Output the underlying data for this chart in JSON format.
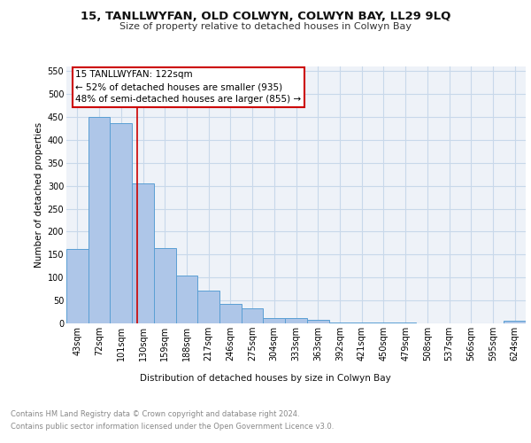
{
  "title": "15, TANLLWYFAN, OLD COLWYN, COLWYN BAY, LL29 9LQ",
  "subtitle": "Size of property relative to detached houses in Colwyn Bay",
  "xlabel": "Distribution of detached houses by size in Colwyn Bay",
  "ylabel": "Number of detached properties",
  "categories": [
    "43sqm",
    "72sqm",
    "101sqm",
    "130sqm",
    "159sqm",
    "188sqm",
    "217sqm",
    "246sqm",
    "275sqm",
    "304sqm",
    "333sqm",
    "363sqm",
    "392sqm",
    "421sqm",
    "450sqm",
    "479sqm",
    "508sqm",
    "537sqm",
    "566sqm",
    "595sqm",
    "624sqm"
  ],
  "values": [
    163,
    450,
    437,
    305,
    165,
    105,
    72,
    43,
    33,
    11,
    11,
    8,
    2,
    2,
    1,
    1,
    0,
    0,
    0,
    0,
    5
  ],
  "bar_color": "#aec6e8",
  "bar_edge_color": "#5a9fd4",
  "grid_color": "#c8d8ea",
  "annotation_text_line1": "15 TANLLWYFAN: 122sqm",
  "annotation_text_line2": "← 52% of detached houses are smaller (935)",
  "annotation_text_line3": "48% of semi-detached houses are larger (855) →",
  "annotation_box_facecolor": "#ffffff",
  "annotation_box_edgecolor": "#cc0000",
  "vline_color": "#cc0000",
  "ylim": [
    0,
    560
  ],
  "yticks": [
    0,
    50,
    100,
    150,
    200,
    250,
    300,
    350,
    400,
    450,
    500,
    550
  ],
  "footer_line1": "Contains HM Land Registry data © Crown copyright and database right 2024.",
  "footer_line2": "Contains public sector information licensed under the Open Government Licence v3.0.",
  "background_color": "#eef2f8",
  "title_fontsize": 9.5,
  "subtitle_fontsize": 8,
  "ylabel_fontsize": 7.5,
  "xlabel_fontsize": 7.5,
  "tick_fontsize": 7,
  "footer_fontsize": 6,
  "annotation_fontsize": 7.5
}
